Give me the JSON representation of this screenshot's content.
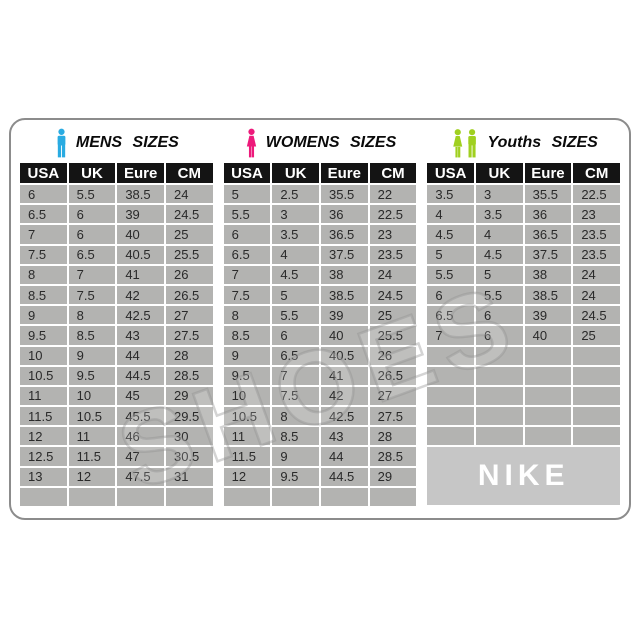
{
  "watermark": {
    "text": "SHOES"
  },
  "brand": {
    "label": "NIKE"
  },
  "colors": {
    "mens_icon": "#29abe2",
    "womens_icon": "#ed1a7b",
    "youths_icon": "#a0d020",
    "header_bg": "#141414",
    "header_text": "#ffffff",
    "cell_bg": "#b3b3b1",
    "nike_bg": "#c6c6c6",
    "card_border": "#8c8c8c"
  },
  "icons": {
    "mens": "male-figure-icon",
    "womens": "female-figure-icon",
    "youths": "children-figures-icon"
  },
  "sections": {
    "mens": {
      "title": "MENS SIZES",
      "headers": [
        "USA",
        "UK",
        "Eure",
        "CM"
      ],
      "rows": [
        [
          "6",
          "5.5",
          "38.5",
          "24"
        ],
        [
          "6.5",
          "6",
          "39",
          "24.5"
        ],
        [
          "7",
          "6",
          "40",
          "25"
        ],
        [
          "7.5",
          "6.5",
          "40.5",
          "25.5"
        ],
        [
          "8",
          "7",
          "41",
          "26"
        ],
        [
          "8.5",
          "7.5",
          "42",
          "26.5"
        ],
        [
          "9",
          "8",
          "42.5",
          "27"
        ],
        [
          "9.5",
          "8.5",
          "43",
          "27.5"
        ],
        [
          "10",
          "9",
          "44",
          "28"
        ],
        [
          "10.5",
          "9.5",
          "44.5",
          "28.5"
        ],
        [
          "11",
          "10",
          "45",
          "29"
        ],
        [
          "11.5",
          "10.5",
          "45.5",
          "29.5"
        ],
        [
          "12",
          "11",
          "46",
          "30"
        ],
        [
          "12.5",
          "11.5",
          "47",
          "30.5"
        ],
        [
          "13",
          "12",
          "47.5",
          "31"
        ],
        [
          "",
          "",
          "",
          ""
        ]
      ]
    },
    "womens": {
      "title": "WOMENS SIZES",
      "headers": [
        "USA",
        "UK",
        "Eure",
        "CM"
      ],
      "rows": [
        [
          "5",
          "2.5",
          "35.5",
          "22"
        ],
        [
          "5.5",
          "3",
          "36",
          "22.5"
        ],
        [
          "6",
          "3.5",
          "36.5",
          "23"
        ],
        [
          "6.5",
          "4",
          "37.5",
          "23.5"
        ],
        [
          "7",
          "4.5",
          "38",
          "24"
        ],
        [
          "7.5",
          "5",
          "38.5",
          "24.5"
        ],
        [
          "8",
          "5.5",
          "39",
          "25"
        ],
        [
          "8.5",
          "6",
          "40",
          "25.5"
        ],
        [
          "9",
          "6.5",
          "40.5",
          "26"
        ],
        [
          "9.5",
          "7",
          "41",
          "26.5"
        ],
        [
          "10",
          "7.5",
          "42",
          "27"
        ],
        [
          "10.5",
          "8",
          "42.5",
          "27.5"
        ],
        [
          "11",
          "8.5",
          "43",
          "28"
        ],
        [
          "11.5",
          "9",
          "44",
          "28.5"
        ],
        [
          "12",
          "9.5",
          "44.5",
          "29"
        ],
        [
          "",
          "",
          "",
          ""
        ]
      ]
    },
    "youths": {
      "title": "Youths SIZES",
      "headers": [
        "USA",
        "UK",
        "Eure",
        "CM"
      ],
      "rows": [
        [
          "3.5",
          "3",
          "35.5",
          "22.5"
        ],
        [
          "4",
          "3.5",
          "36",
          "23"
        ],
        [
          "4.5",
          "4",
          "36.5",
          "23.5"
        ],
        [
          "5",
          "4.5",
          "37.5",
          "23.5"
        ],
        [
          "5.5",
          "5",
          "38",
          "24"
        ],
        [
          "6",
          "5.5",
          "38.5",
          "24"
        ],
        [
          "6.5",
          "6",
          "39",
          "24.5"
        ],
        [
          "7",
          "6",
          "40",
          "25"
        ],
        [
          "",
          "",
          "",
          ""
        ],
        [
          "",
          "",
          "",
          ""
        ],
        [
          "",
          "",
          "",
          ""
        ],
        [
          "",
          "",
          "",
          ""
        ],
        [
          "",
          "",
          "",
          ""
        ]
      ]
    }
  }
}
